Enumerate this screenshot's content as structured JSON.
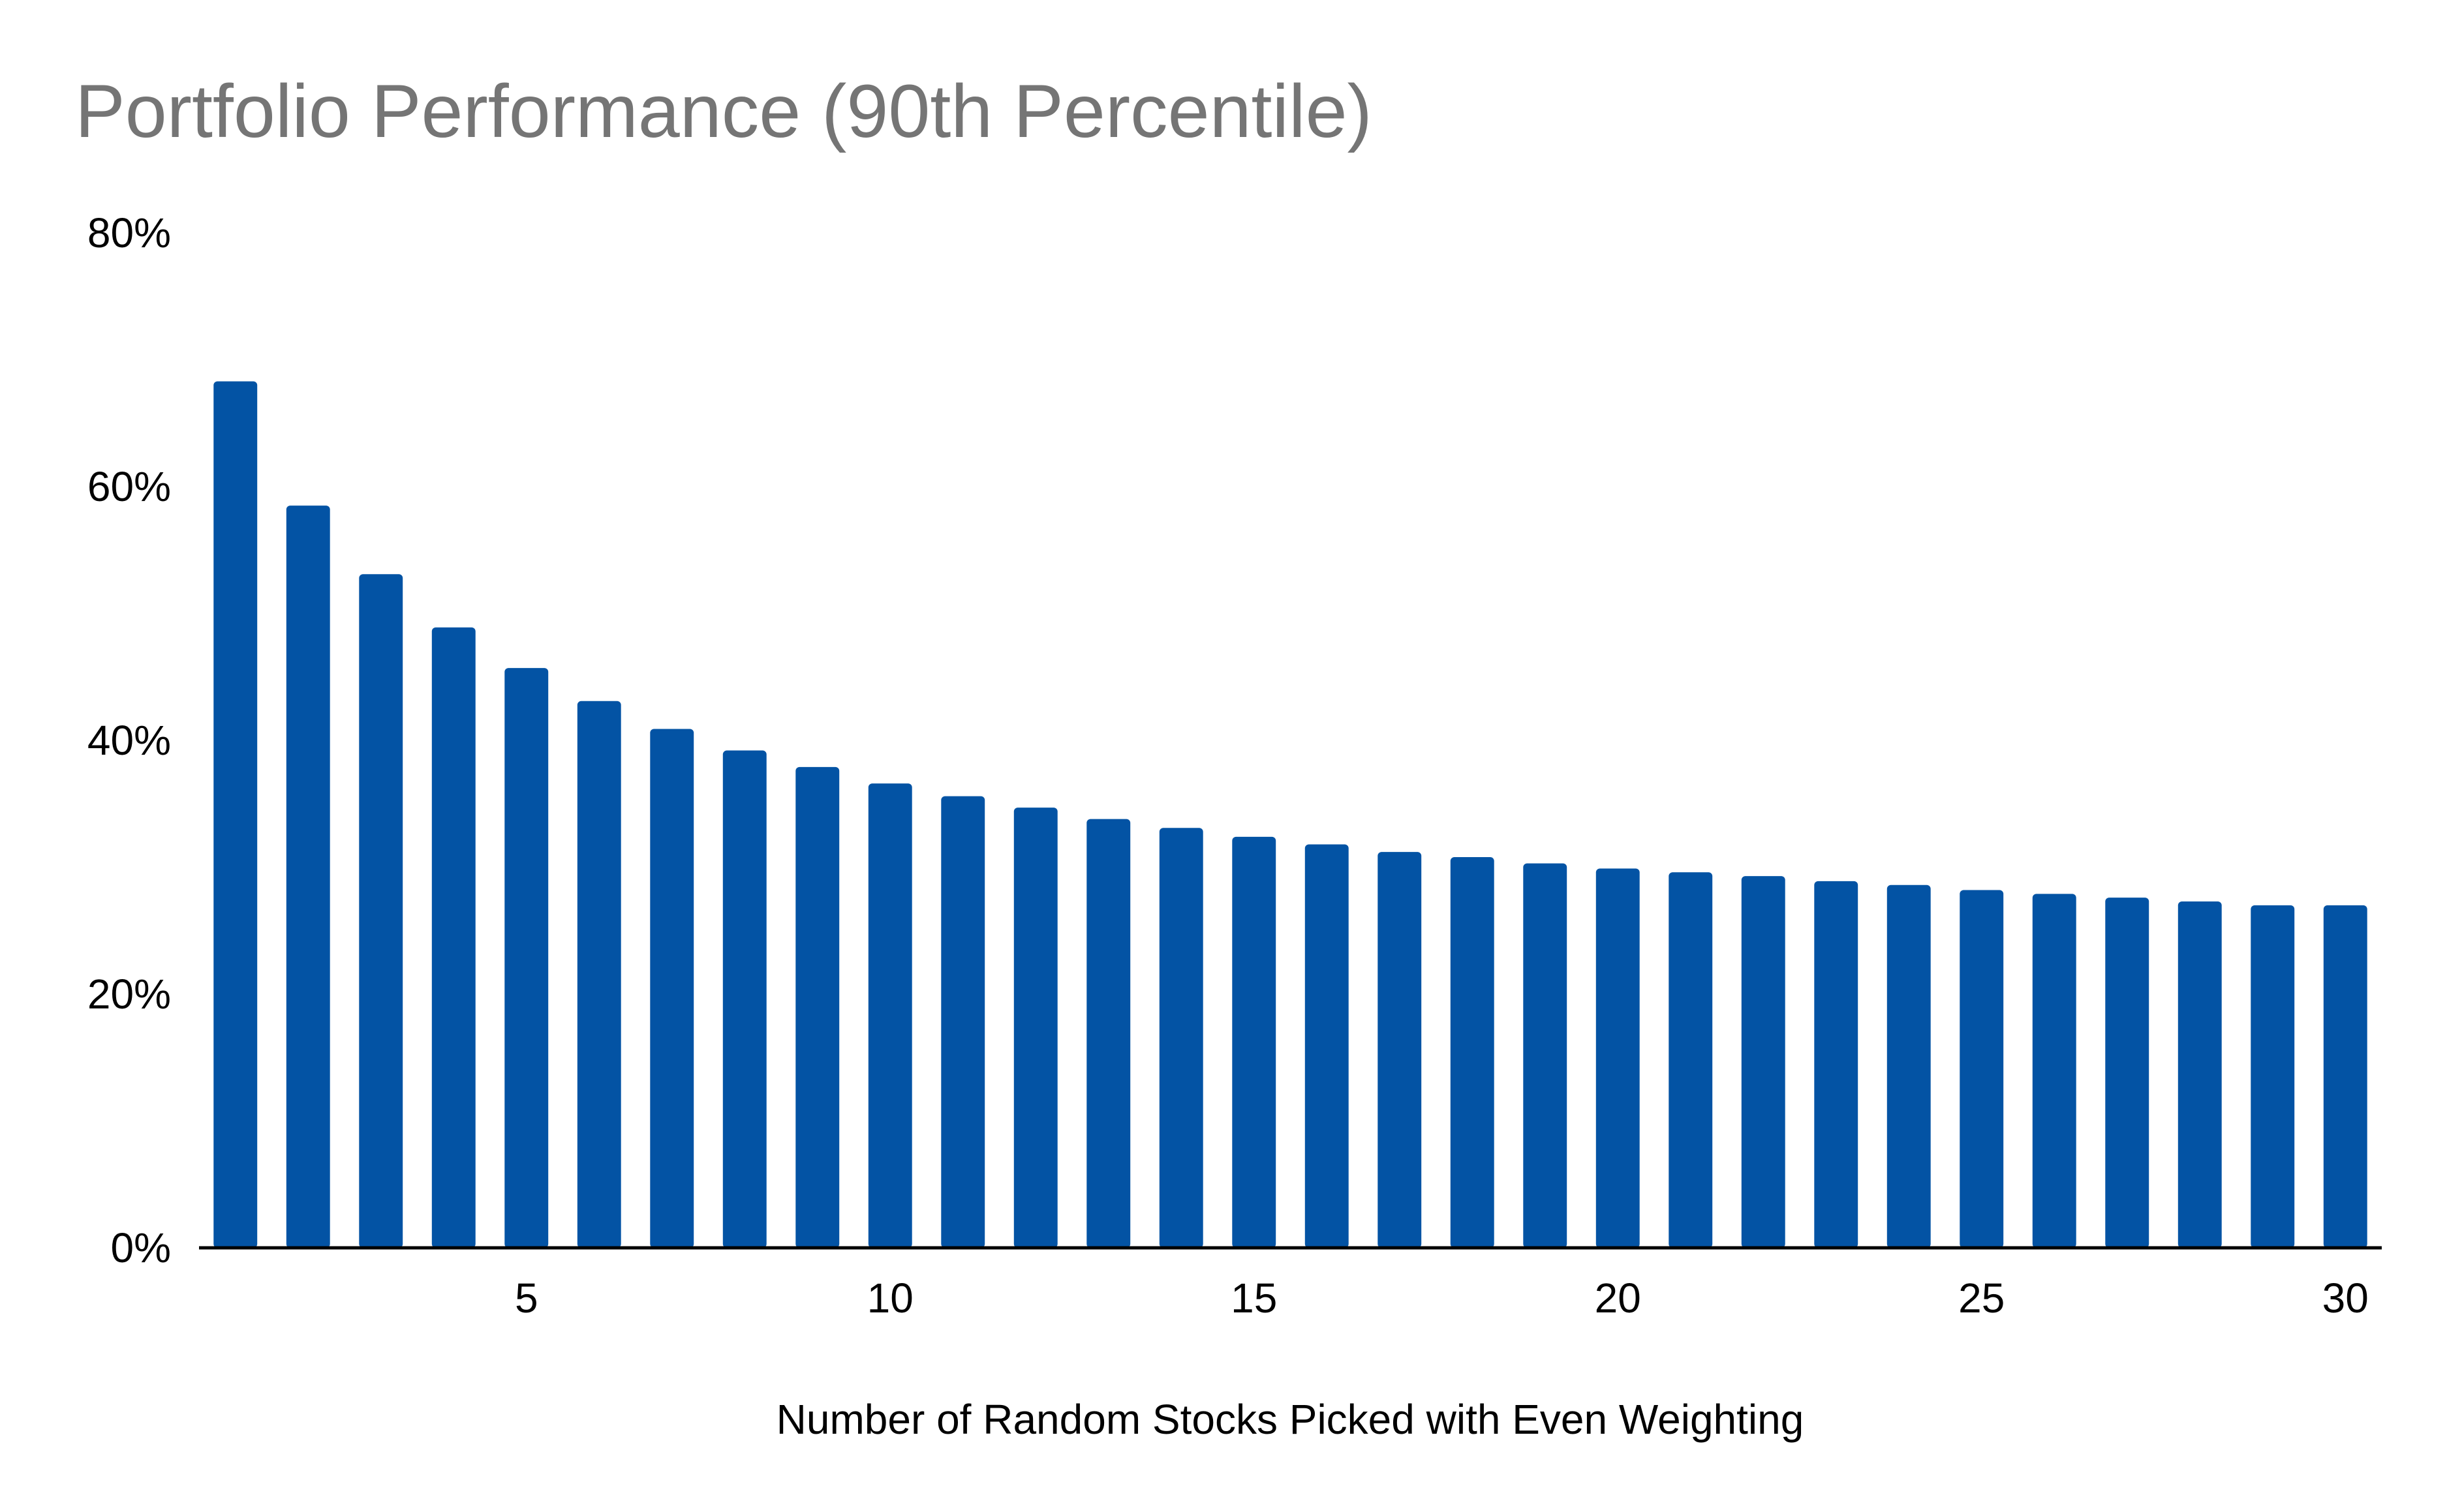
{
  "chart_data": {
    "type": "bar",
    "title": "Portfolio Performance (90th Percentile)",
    "xlabel": "Number of Random Stocks Picked with Even Weighting",
    "ylabel": "",
    "categories": [
      1,
      2,
      3,
      4,
      5,
      6,
      7,
      8,
      9,
      10,
      11,
      12,
      13,
      14,
      15,
      16,
      17,
      18,
      19,
      20,
      21,
      22,
      23,
      24,
      25,
      26,
      27,
      28,
      29,
      30
    ],
    "values": [
      68.3,
      58.5,
      53.1,
      48.9,
      45.7,
      43.1,
      40.9,
      39.2,
      37.9,
      36.6,
      35.6,
      34.7,
      33.8,
      33.1,
      32.4,
      31.8,
      31.2,
      30.8,
      30.3,
      29.9,
      29.6,
      29.3,
      28.9,
      28.6,
      28.2,
      27.9,
      27.6,
      27.3,
      27.0,
      27.0
    ],
    "ylim": [
      0,
      80
    ],
    "yticks": [
      0,
      20,
      40,
      60,
      80
    ],
    "ytick_labels": [
      "0%",
      "20%",
      "40%",
      "60%",
      "80%"
    ],
    "xticks": [
      5,
      10,
      15,
      20,
      25,
      30
    ],
    "xtick_labels": [
      "5",
      "10",
      "15",
      "20",
      "25",
      "30"
    ],
    "grid": false,
    "legend": "none",
    "colors": {
      "bar": "#0353a4",
      "title": "#757575",
      "axis": "#000000",
      "text": "#000000"
    }
  }
}
